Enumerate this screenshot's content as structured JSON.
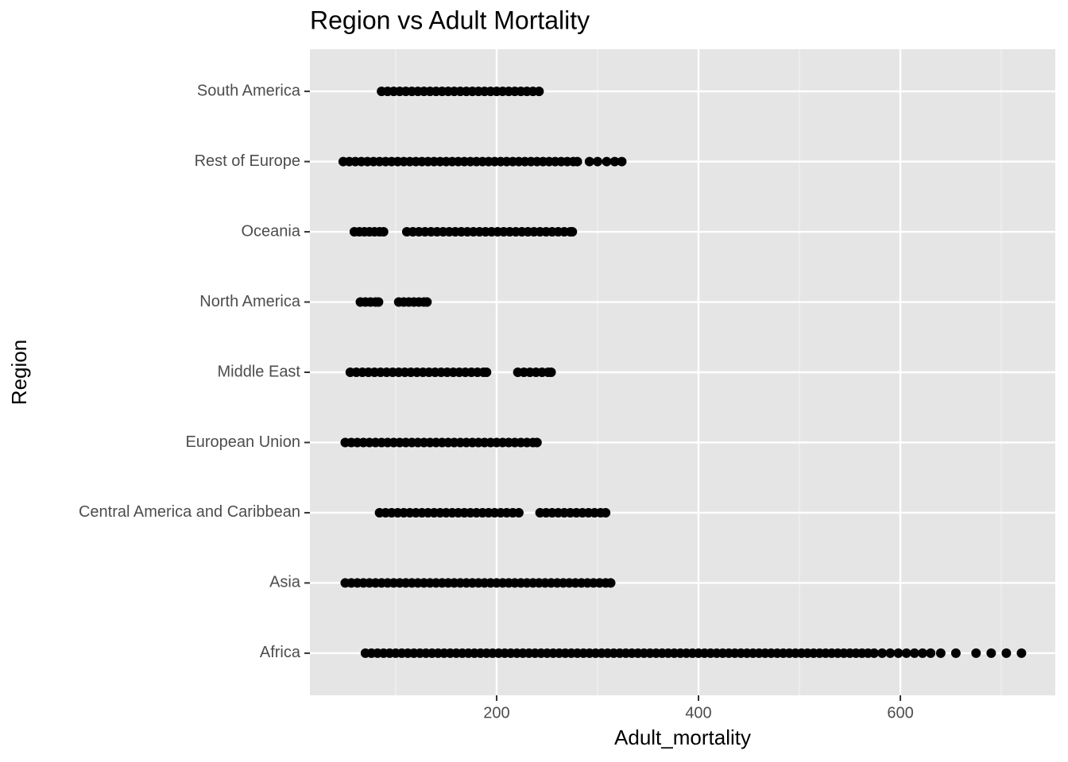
{
  "chart_data": {
    "type": "strip",
    "title": "Region vs Adult Mortality",
    "x_label": "Adult_mortality",
    "y_label": "Region",
    "categories": [
      "Africa",
      "Asia",
      "Central America and Caribbean",
      "European Union",
      "Middle East",
      "North America",
      "Oceania",
      "Rest of Europe",
      "South America"
    ],
    "values": [
      [
        70,
        76,
        82,
        88,
        94,
        100,
        106,
        112,
        118,
        124,
        130,
        136,
        142,
        148,
        154,
        160,
        166,
        172,
        178,
        184,
        190,
        196,
        202,
        208,
        214,
        220,
        226,
        232,
        238,
        244,
        250,
        256,
        262,
        268,
        274,
        280,
        286,
        292,
        298,
        304,
        310,
        316,
        322,
        328,
        334,
        340,
        346,
        352,
        358,
        364,
        370,
        376,
        382,
        388,
        394,
        400,
        406,
        412,
        418,
        424,
        430,
        436,
        442,
        448,
        454,
        460,
        466,
        472,
        478,
        484,
        490,
        496,
        502,
        508,
        514,
        520,
        526,
        532,
        538,
        544,
        550,
        556,
        562,
        568,
        574,
        582,
        590,
        598,
        606,
        614,
        622,
        630,
        640,
        655,
        675,
        690,
        705,
        720
      ],
      [
        50,
        56,
        62,
        68,
        74,
        80,
        86,
        92,
        98,
        104,
        110,
        116,
        122,
        128,
        134,
        140,
        146,
        152,
        158,
        164,
        170,
        176,
        182,
        188,
        194,
        200,
        206,
        212,
        218,
        224,
        230,
        236,
        242,
        248,
        254,
        260,
        266,
        272,
        278,
        284,
        290,
        296,
        302,
        308,
        313
      ],
      [
        84,
        90,
        96,
        102,
        108,
        114,
        120,
        126,
        132,
        138,
        144,
        150,
        156,
        162,
        168,
        174,
        180,
        186,
        192,
        198,
        204,
        210,
        216,
        222,
        243,
        249,
        255,
        261,
        267,
        273,
        279,
        285,
        291,
        297,
        303,
        308
      ],
      [
        50,
        56,
        62,
        68,
        74,
        80,
        86,
        92,
        98,
        104,
        110,
        116,
        122,
        128,
        134,
        140,
        146,
        152,
        158,
        164,
        170,
        176,
        182,
        188,
        194,
        200,
        206,
        212,
        218,
        224,
        230,
        236,
        240
      ],
      [
        55,
        61,
        67,
        73,
        79,
        85,
        91,
        97,
        103,
        109,
        115,
        121,
        127,
        133,
        139,
        145,
        151,
        157,
        163,
        169,
        175,
        181,
        187,
        190,
        221,
        227,
        233,
        239,
        245,
        251,
        254
      ],
      [
        65,
        70,
        75,
        80,
        83,
        103,
        108,
        113,
        118,
        123,
        128,
        131
      ],
      [
        59,
        64,
        69,
        74,
        79,
        84,
        88,
        111,
        117,
        123,
        129,
        135,
        141,
        147,
        153,
        159,
        165,
        171,
        177,
        183,
        189,
        195,
        201,
        207,
        213,
        219,
        225,
        231,
        237,
        243,
        249,
        255,
        261,
        267,
        273,
        275
      ],
      [
        48,
        54,
        60,
        66,
        72,
        78,
        84,
        90,
        96,
        102,
        108,
        114,
        120,
        126,
        132,
        138,
        144,
        150,
        156,
        162,
        168,
        174,
        180,
        186,
        192,
        198,
        204,
        210,
        216,
        222,
        228,
        234,
        240,
        246,
        252,
        258,
        264,
        270,
        276,
        280,
        292,
        300,
        309,
        317,
        324
      ],
      [
        86,
        92,
        98,
        104,
        110,
        116,
        122,
        128,
        134,
        140,
        146,
        152,
        158,
        164,
        170,
        176,
        182,
        188,
        194,
        200,
        206,
        212,
        218,
        224,
        230,
        236,
        242
      ]
    ],
    "color": "#000000",
    "xlim": [
      15,
      753.5
    ],
    "xticks": [
      200,
      400,
      600
    ],
    "xminor_ticks": [
      100,
      300,
      500,
      700
    ],
    "grid": true
  }
}
